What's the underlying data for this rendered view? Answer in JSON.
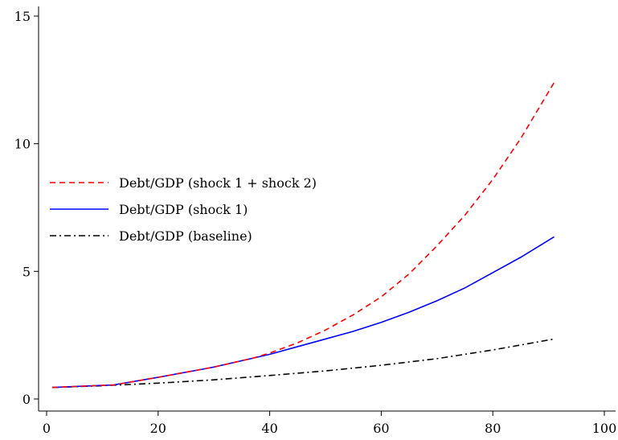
{
  "chart_data": {
    "type": "line",
    "title": "",
    "xlabel": "",
    "ylabel": "",
    "xlim": [
      0,
      100
    ],
    "ylim": [
      0,
      15
    ],
    "xticks": [
      0,
      20,
      40,
      60,
      80,
      100
    ],
    "yticks": [
      0,
      5,
      10,
      15
    ],
    "grid": false,
    "legend_position": "middle-left",
    "series": [
      {
        "name": "Debt/GDP (shock 1 + shock 2)",
        "color": "#ff0000",
        "dash": "dashed",
        "x": [
          1,
          12,
          20,
          30,
          37,
          40,
          45,
          50,
          55,
          60,
          65,
          70,
          75,
          80,
          85,
          91
        ],
        "y": [
          0.45,
          0.55,
          0.85,
          1.25,
          1.6,
          1.8,
          2.2,
          2.7,
          3.3,
          4.0,
          4.9,
          6.0,
          7.2,
          8.6,
          10.2,
          12.4
        ]
      },
      {
        "name": "Debt/GDP (shock 1)",
        "color": "#0000ff",
        "dash": "solid",
        "x": [
          1,
          12,
          20,
          30,
          37,
          40,
          45,
          50,
          55,
          60,
          65,
          70,
          75,
          80,
          85,
          91
        ],
        "y": [
          0.45,
          0.55,
          0.85,
          1.25,
          1.6,
          1.75,
          2.05,
          2.35,
          2.65,
          3.0,
          3.4,
          3.85,
          4.35,
          4.95,
          5.55,
          6.35
        ]
      },
      {
        "name": "Debt/GDP (baseline)",
        "color": "#000000",
        "dash": "dashdot",
        "x": [
          1,
          10,
          20,
          30,
          40,
          50,
          60,
          70,
          80,
          91
        ],
        "y": [
          0.45,
          0.52,
          0.62,
          0.75,
          0.92,
          1.1,
          1.32,
          1.58,
          1.92,
          2.35
        ]
      }
    ]
  }
}
